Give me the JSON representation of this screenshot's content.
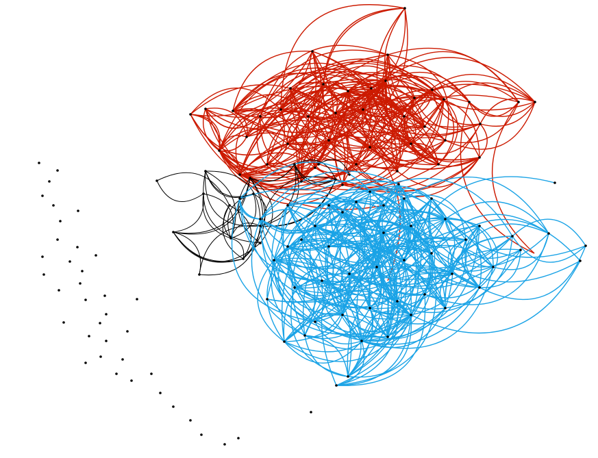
{
  "graph": {
    "type": "network",
    "colors": {
      "background": "#ffffff",
      "red_cluster": "#cc1a00",
      "blue_cluster": "#1aa3e6",
      "black_cluster": "#000000",
      "node": "#000000"
    },
    "node_count_approx": 110,
    "edge_groups": [
      {
        "color": "red_cluster",
        "edge_count_approx": 260
      },
      {
        "color": "blue_cluster",
        "edge_count_approx": 260
      },
      {
        "color": "black_cluster",
        "edge_count_approx": 40
      }
    ],
    "isolated_node_count_approx": 45
  }
}
